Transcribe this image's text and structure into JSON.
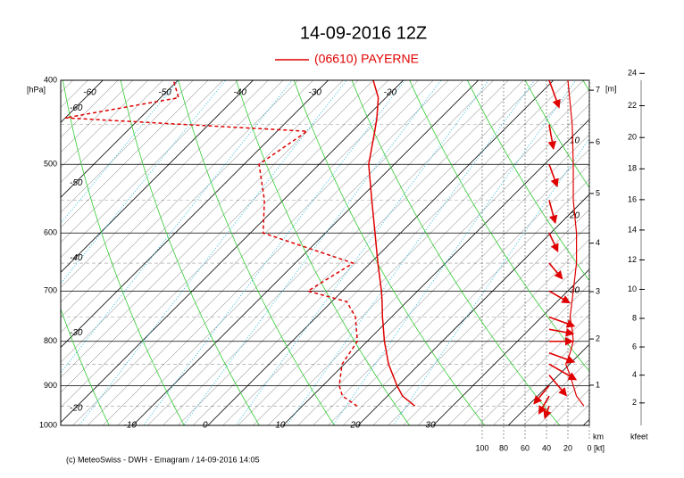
{
  "chart_data": {
    "type": "emagram",
    "title": "14-09-2016  12Z",
    "legend": "(06610)  PAYERNE",
    "color": "#e00000",
    "footer": "(c) MeteoSwiss - DWH - Emagram  /  14-09-2016  14:05",
    "ylabel": "[hPa]",
    "ylim": [
      1000,
      400
    ],
    "yticks": [
      400,
      500,
      600,
      700,
      800,
      900,
      1000
    ],
    "minor_yticks": [
      450,
      550,
      650,
      750,
      850,
      950
    ],
    "xlim": [
      -19.6,
      50.8
    ],
    "isotherms": [
      -100,
      -90,
      -80,
      -70,
      -60,
      -50,
      -40,
      -30,
      -20,
      -10,
      0,
      10,
      20,
      30,
      40,
      50
    ],
    "isotherm_labels_bottom": [
      -10,
      0,
      10,
      20,
      30
    ],
    "isotherm_labels_left": [
      -20,
      -30,
      -40,
      -50,
      -60
    ],
    "isotherm_labels_top": [
      -60,
      -50,
      -40,
      -30,
      -20
    ],
    "isotherm_labels_right": [
      10,
      20,
      30
    ],
    "dry_adiabats": [
      240,
      250,
      260,
      270,
      280,
      290,
      300,
      310,
      320,
      330,
      340,
      350,
      360,
      370,
      380,
      390,
      400,
      410,
      420,
      430,
      440,
      450,
      460
    ],
    "mixing_ratios": [
      0.1,
      0.2,
      0.5,
      1,
      2,
      3,
      5,
      8,
      12,
      20
    ],
    "pressure": [
      950,
      925,
      900,
      850,
      800,
      750,
      720,
      700,
      650,
      600,
      550,
      500,
      458,
      442,
      419,
      400
    ],
    "temperature": [
      25,
      22,
      19.9,
      15.9,
      12.3,
      8.8,
      6.7,
      5.2,
      1,
      -3.4,
      -8.2,
      -13.4,
      -17,
      -18.5,
      -21,
      -24
    ],
    "dewpoint": [
      17.3,
      14,
      12.2,
      9.7,
      8.7,
      5.2,
      2,
      -4.6,
      -2.3,
      -18.3,
      -22.5,
      -28,
      -26,
      -60,
      -47.6,
      -50.6
    ],
    "wind": {
      "pressure": [
        950,
        925,
        900,
        875,
        850,
        825,
        800,
        775,
        750,
        700,
        650,
        600,
        550,
        500,
        450,
        400
      ],
      "direction": [
        20,
        30,
        40,
        320,
        300,
        290,
        270,
        280,
        290,
        300,
        320,
        335,
        345,
        340,
        350,
        340
      ],
      "speed": [
        5,
        12,
        15,
        18,
        22,
        18,
        15,
        16,
        18,
        15,
        12,
        12,
        15,
        15,
        16,
        20
      ]
    },
    "speed_lim": [
      0,
      100
    ],
    "speed_ticks": [
      100,
      80,
      60,
      40,
      20,
      0
    ],
    "speed_label": "[kt]",
    "height_unit": "[m]",
    "height_km_label": "km",
    "height_ticks_km": [
      1,
      2,
      3,
      4,
      5,
      6,
      7
    ],
    "height_kfeet_label": "kfeet",
    "height_ticks_kfeet": [
      2,
      4,
      6,
      8,
      10,
      12,
      14,
      16,
      18,
      20,
      22,
      24
    ]
  }
}
